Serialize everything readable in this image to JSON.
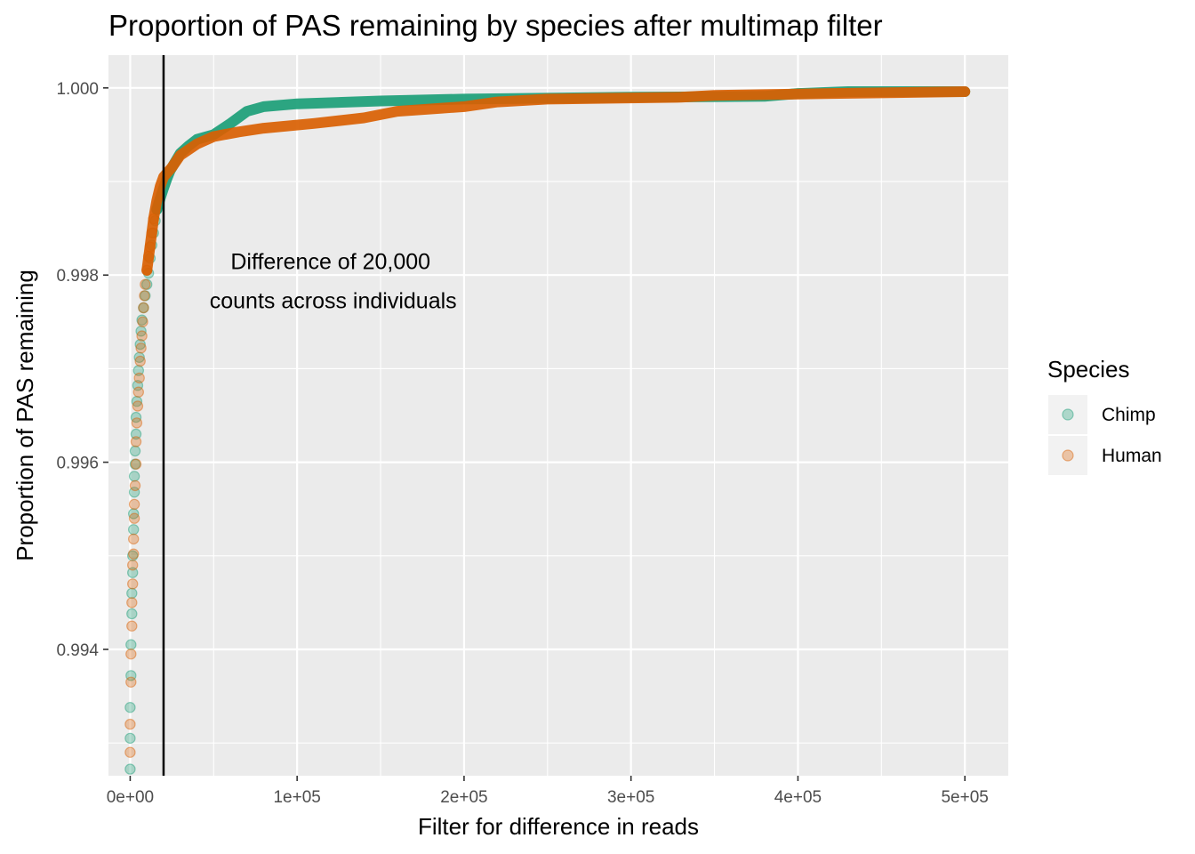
{
  "chart_data": {
    "type": "scatter",
    "title": "Proportion of PAS remaining by species after multimap filter",
    "xlabel": "Filter for difference in reads",
    "ylabel": "Proportion of PAS remaining",
    "xlim": [
      -13000,
      526000
    ],
    "ylim": [
      0.99265,
      1.00035
    ],
    "x_ticks": [
      0,
      100000,
      200000,
      300000,
      400000,
      500000
    ],
    "x_tick_labels": [
      "0e+00",
      "1e+05",
      "2e+05",
      "3e+05",
      "4e+05",
      "5e+05"
    ],
    "y_ticks": [
      0.994,
      0.996,
      0.998,
      1.0
    ],
    "y_tick_labels": [
      "0.994",
      "0.996",
      "0.998",
      "1.000"
    ],
    "vline_x": 20000,
    "annotation": {
      "lines": [
        "Difference of 20,000",
        "counts across individuals"
      ],
      "x": 120000,
      "y": 0.99795
    },
    "legend": {
      "title": "Species",
      "position": "right",
      "entries": [
        "Chimp",
        "Human"
      ]
    },
    "series": [
      {
        "name": "Chimp",
        "color": "#1B9E77",
        "sparse_points": [
          [
            0,
            0.99272
          ],
          [
            0,
            0.99305
          ],
          [
            0,
            0.99338
          ],
          [
            500,
            0.99372
          ],
          [
            500,
            0.99405
          ],
          [
            1000,
            0.99438
          ],
          [
            1000,
            0.9946
          ],
          [
            1500,
            0.99482
          ],
          [
            1500,
            0.995
          ],
          [
            2000,
            0.99528
          ],
          [
            2000,
            0.99545
          ],
          [
            2500,
            0.99568
          ],
          [
            2500,
            0.99585
          ],
          [
            3000,
            0.99598
          ],
          [
            3000,
            0.99612
          ],
          [
            3500,
            0.9963
          ],
          [
            3500,
            0.99648
          ],
          [
            4000,
            0.99665
          ],
          [
            4500,
            0.99682
          ],
          [
            5000,
            0.99698
          ],
          [
            5500,
            0.99712
          ],
          [
            6000,
            0.99726
          ],
          [
            6500,
            0.9974
          ],
          [
            7000,
            0.99752
          ],
          [
            8000,
            0.99765
          ],
          [
            9000,
            0.99778
          ],
          [
            10000,
            0.9979
          ],
          [
            11000,
            0.99802
          ],
          [
            12000,
            0.99818
          ],
          [
            13000,
            0.99832
          ],
          [
            14000,
            0.99845
          ],
          [
            15000,
            0.99858
          ],
          [
            16000,
            0.9987
          ]
        ],
        "curve": [
          [
            16000,
            0.9987
          ],
          [
            18000,
            0.99882
          ],
          [
            20000,
            0.99893
          ],
          [
            22000,
            0.99903
          ],
          [
            24000,
            0.99912
          ],
          [
            27000,
            0.99921
          ],
          [
            30000,
            0.9993
          ],
          [
            35000,
            0.99938
          ],
          [
            40000,
            0.99945
          ],
          [
            50000,
            0.9995
          ],
          [
            60000,
            0.99962
          ],
          [
            70000,
            0.99975
          ],
          [
            80000,
            0.9998
          ],
          [
            100000,
            0.99983
          ],
          [
            150000,
            0.99986
          ],
          [
            200000,
            0.99988
          ],
          [
            300000,
            0.9999
          ],
          [
            380000,
            0.99991
          ],
          [
            400000,
            0.99994
          ],
          [
            430000,
            0.99996
          ],
          [
            500000,
            0.99996
          ]
        ]
      },
      {
        "name": "Human",
        "color": "#D95F02",
        "sparse_points": [
          [
            0,
            0.9929
          ],
          [
            0,
            0.9932
          ],
          [
            500,
            0.99365
          ],
          [
            500,
            0.99395
          ],
          [
            1000,
            0.99425
          ],
          [
            1000,
            0.9945
          ],
          [
            1500,
            0.9947
          ],
          [
            1500,
            0.9949
          ],
          [
            2000,
            0.99502
          ],
          [
            2000,
            0.99518
          ],
          [
            2500,
            0.9954
          ],
          [
            2500,
            0.99555
          ],
          [
            3000,
            0.99575
          ],
          [
            3500,
            0.99598
          ],
          [
            3500,
            0.99622
          ],
          [
            4000,
            0.99642
          ],
          [
            4500,
            0.9966
          ],
          [
            5000,
            0.99675
          ],
          [
            5500,
            0.9969
          ],
          [
            6000,
            0.99708
          ],
          [
            6500,
            0.99722
          ],
          [
            7000,
            0.99735
          ],
          [
            7500,
            0.9975
          ],
          [
            8000,
            0.99765
          ],
          [
            8500,
            0.99778
          ],
          [
            9000,
            0.9979
          ],
          [
            10000,
            0.99805
          ],
          [
            11000,
            0.9982
          ],
          [
            12000,
            0.9983
          ],
          [
            13000,
            0.99845
          ],
          [
            14000,
            0.9986
          ]
        ],
        "curve": [
          [
            10000,
            0.99805
          ],
          [
            12000,
            0.99832
          ],
          [
            14000,
            0.9986
          ],
          [
            16000,
            0.9988
          ],
          [
            18000,
            0.99895
          ],
          [
            20000,
            0.99905
          ],
          [
            25000,
            0.99915
          ],
          [
            30000,
            0.99928
          ],
          [
            40000,
            0.9994
          ],
          [
            50000,
            0.99948
          ],
          [
            65000,
            0.99953
          ],
          [
            80000,
            0.99957
          ],
          [
            110000,
            0.99962
          ],
          [
            140000,
            0.99968
          ],
          [
            160000,
            0.99975
          ],
          [
            200000,
            0.9998
          ],
          [
            220000,
            0.99985
          ],
          [
            250000,
            0.99988
          ],
          [
            330000,
            0.9999
          ],
          [
            350000,
            0.99992
          ],
          [
            420000,
            0.99994
          ],
          [
            500000,
            0.99996
          ]
        ]
      }
    ]
  }
}
